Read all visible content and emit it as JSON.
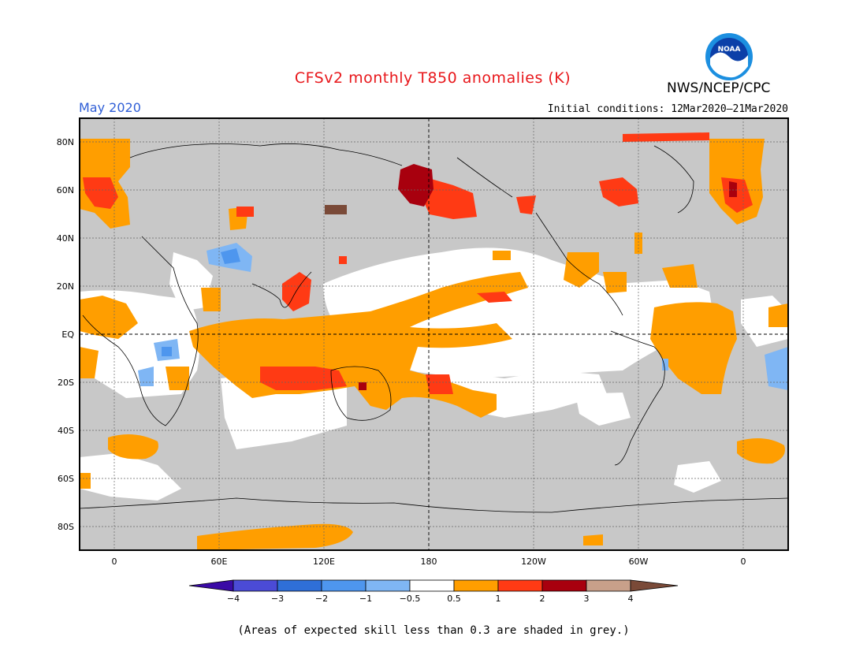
{
  "header": {
    "title": "CFSv2 monthly T850 anomalies (K)",
    "month": "May 2020",
    "initial_conditions": "Initial conditions: 12Mar2020–21Mar2020",
    "agency": "NWS/NCEP/CPC",
    "logo_text": "NOAA"
  },
  "map": {
    "lat_labels": [
      "80N",
      "60N",
      "40N",
      "20N",
      "EQ",
      "20S",
      "40S",
      "60S",
      "80S"
    ],
    "lon_labels": [
      "0",
      "60E",
      "120E",
      "180",
      "120W",
      "60W",
      "0"
    ],
    "background_skill_color": "#c8c8c8"
  },
  "legend": {
    "tick_labels": [
      "−4",
      "−3",
      "−2",
      "−1",
      "−0.5",
      "0.5",
      "1",
      "2",
      "3",
      "4"
    ],
    "colors": [
      "#3a0aa6",
      "#4b4bd6",
      "#2f6fd8",
      "#4e96ee",
      "#7fb6f4",
      "#ffffff",
      "#ff9e00",
      "#ff3a14",
      "#a8000e",
      "#c8a08a",
      "#7a4a38"
    ]
  },
  "footer": {
    "note": "(Areas of expected skill less than 0.3 are shaded in grey.)"
  }
}
